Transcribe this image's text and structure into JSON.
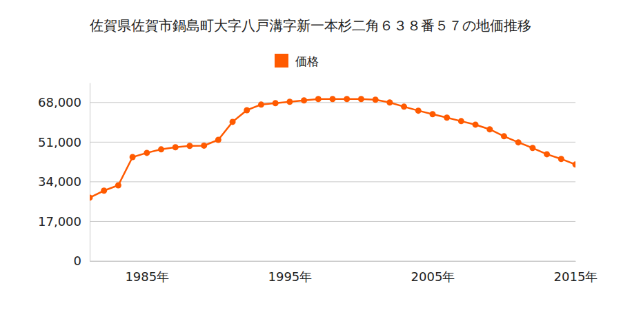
{
  "chart_data": {
    "type": "line",
    "title": "佐賀県佐賀市鍋島町大字八戸溝字新一本杉二角６３８番５７の地価推移",
    "x": [
      1981,
      1982,
      1983,
      1984,
      1985,
      1986,
      1987,
      1988,
      1989,
      1990,
      1991,
      1992,
      1993,
      1994,
      1995,
      1996,
      1997,
      1998,
      1999,
      2000,
      2001,
      2002,
      2003,
      2004,
      2005,
      2006,
      2007,
      2008,
      2009,
      2010,
      2011,
      2012,
      2013,
      2014,
      2015
    ],
    "series": [
      {
        "name": "価格",
        "color": "#ff5a00",
        "marker": "circle",
        "line_style": "solid",
        "values": [
          27200,
          30200,
          32500,
          44600,
          46400,
          47900,
          48800,
          49400,
          49500,
          52000,
          59700,
          64700,
          67100,
          67700,
          68300,
          68900,
          69500,
          69500,
          69500,
          69500,
          69200,
          68000,
          66200,
          64500,
          63000,
          61500,
          60000,
          58500,
          56500,
          53500,
          50900,
          48500,
          45800,
          43800,
          41400
        ]
      }
    ],
    "xlim": [
      1981,
      2015
    ],
    "xticks": [
      {
        "value": 1985,
        "label": "1985年"
      },
      {
        "value": 1995,
        "label": "1995年"
      },
      {
        "value": 2005,
        "label": "2005年"
      },
      {
        "value": 2015,
        "label": "2015年"
      }
    ],
    "ylim": [
      0,
      76500
    ],
    "yticks": [
      0,
      {
        "value": 17000,
        "label": "17,000"
      },
      {
        "value": 34000,
        "label": "34,000"
      },
      {
        "value": 51000,
        "label": "51,000"
      },
      {
        "value": 68000,
        "label": "68,000"
      }
    ],
    "grid": true,
    "legend": "top"
  }
}
